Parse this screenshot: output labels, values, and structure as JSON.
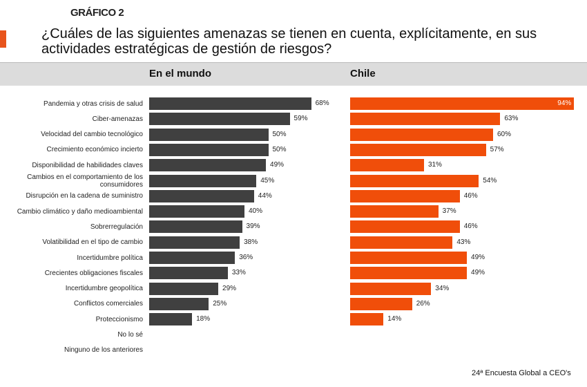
{
  "header": {
    "chart_number": "GRÁFICO 2",
    "question": "¿Cuáles de las siguientes amenazas se tienen en cuenta, explícitamente, en sus actividades estratégicas de gestión de riesgos?"
  },
  "footer": "24ª Encuesta Global a CEO's",
  "colors": {
    "world": "#404040",
    "chile": "#f04e0a",
    "accent": "#e8541c"
  },
  "chart_data": {
    "type": "bar",
    "orientation": "horizontal",
    "categories": [
      "Pandemia y otras crisis de salud",
      "Ciber-amenazas",
      "Velocidad del cambio tecnológico",
      "Crecimiento económico incierto",
      "Disponibilidad de habilidades claves",
      "Cambios en el comportamiento de los consumidores",
      "Disrupción en la cadena de suministro",
      "Cambio climático y daño medioambiental",
      "Sobrerregulación",
      "Volatibilidad en el tipo de cambio",
      "Incertidumbre política",
      "Crecientes obligaciones fiscales",
      "Incertidumbre geopolítica",
      "Conflictos comerciales",
      "Proteccionismo",
      "No lo sé",
      "Ninguno de los anteriores"
    ],
    "panels": [
      {
        "title": "En el mundo",
        "values": [
          68,
          59,
          50,
          50,
          49,
          45,
          44,
          40,
          39,
          38,
          36,
          33,
          29,
          25,
          18,
          null,
          null
        ]
      },
      {
        "title": "Chile",
        "values": [
          94,
          63,
          60,
          57,
          31,
          54,
          46,
          37,
          46,
          43,
          49,
          49,
          34,
          26,
          14,
          null,
          null
        ]
      }
    ],
    "unit": "%",
    "xlim": [
      0,
      100
    ],
    "grid": false
  }
}
